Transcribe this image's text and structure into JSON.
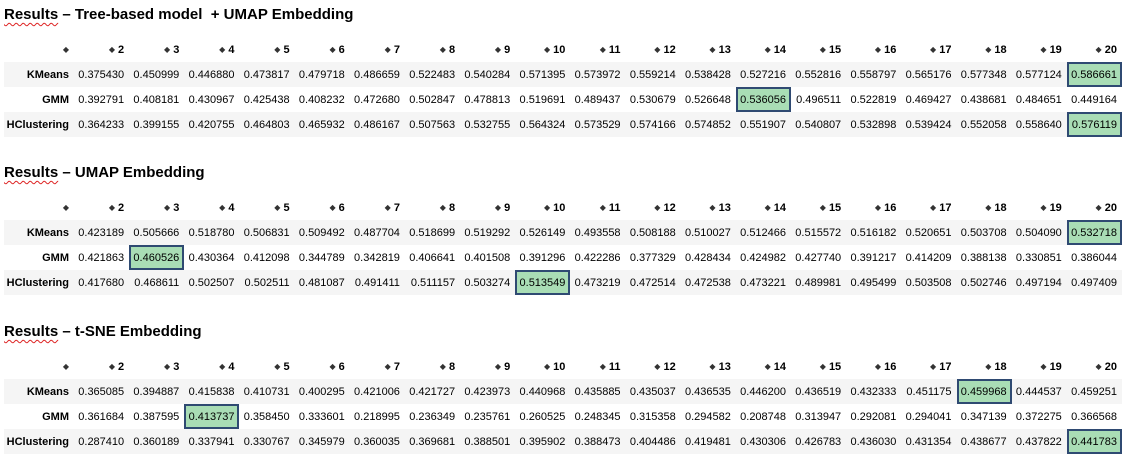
{
  "sections": [
    {
      "title_prefix": "Results",
      "title_rest": " – Tree-based model  + UMAP Embedding",
      "columns": [
        "2",
        "3",
        "4",
        "5",
        "6",
        "7",
        "8",
        "9",
        "10",
        "11",
        "12",
        "13",
        "14",
        "15",
        "16",
        "17",
        "18",
        "19",
        "20"
      ],
      "rows": [
        {
          "label": "KMeans",
          "values": [
            "0.375430",
            "0.450999",
            "0.446880",
            "0.473817",
            "0.479718",
            "0.486659",
            "0.522483",
            "0.540284",
            "0.571395",
            "0.573972",
            "0.559214",
            "0.538428",
            "0.527216",
            "0.552816",
            "0.558797",
            "0.565176",
            "0.577348",
            "0.577124",
            "0.586661"
          ],
          "highlight": 18
        },
        {
          "label": "GMM",
          "values": [
            "0.392791",
            "0.408181",
            "0.430967",
            "0.425438",
            "0.408232",
            "0.472680",
            "0.502847",
            "0.478813",
            "0.519691",
            "0.489437",
            "0.530679",
            "0.526648",
            "0.536056",
            "0.496511",
            "0.522819",
            "0.469427",
            "0.438681",
            "0.484651",
            "0.449164"
          ],
          "highlight": 12
        },
        {
          "label": "HClustering",
          "values": [
            "0.364233",
            "0.399155",
            "0.420755",
            "0.464803",
            "0.465932",
            "0.486167",
            "0.507563",
            "0.532755",
            "0.564324",
            "0.573529",
            "0.574166",
            "0.574852",
            "0.551907",
            "0.540807",
            "0.532898",
            "0.539424",
            "0.552058",
            "0.558640",
            "0.576119"
          ],
          "highlight": 18
        }
      ]
    },
    {
      "title_prefix": "Results",
      "title_rest": " – UMAP Embedding",
      "columns": [
        "2",
        "3",
        "4",
        "5",
        "6",
        "7",
        "8",
        "9",
        "10",
        "11",
        "12",
        "13",
        "14",
        "15",
        "16",
        "17",
        "18",
        "19",
        "20"
      ],
      "rows": [
        {
          "label": "KMeans",
          "values": [
            "0.423189",
            "0.505666",
            "0.518780",
            "0.506831",
            "0.509492",
            "0.487704",
            "0.518699",
            "0.519292",
            "0.526149",
            "0.493558",
            "0.508188",
            "0.510027",
            "0.512466",
            "0.515572",
            "0.516182",
            "0.520651",
            "0.503708",
            "0.504090",
            "0.532718"
          ],
          "highlight": 18
        },
        {
          "label": "GMM",
          "values": [
            "0.421863",
            "0.460526",
            "0.430364",
            "0.412098",
            "0.344789",
            "0.342819",
            "0.406641",
            "0.401508",
            "0.391296",
            "0.422286",
            "0.377329",
            "0.428434",
            "0.424982",
            "0.427740",
            "0.391217",
            "0.414209",
            "0.388138",
            "0.330851",
            "0.386044"
          ],
          "highlight": 1
        },
        {
          "label": "HClustering",
          "values": [
            "0.417680",
            "0.468611",
            "0.502507",
            "0.502511",
            "0.481087",
            "0.491411",
            "0.511157",
            "0.503274",
            "0.513549",
            "0.473219",
            "0.472514",
            "0.472538",
            "0.473221",
            "0.489981",
            "0.495499",
            "0.503508",
            "0.502746",
            "0.497194",
            "0.497409"
          ],
          "highlight": 8
        }
      ]
    },
    {
      "title_prefix": "Results",
      "title_rest": " – t-SNE Embedding",
      "columns": [
        "2",
        "3",
        "4",
        "5",
        "6",
        "7",
        "8",
        "9",
        "10",
        "11",
        "12",
        "13",
        "14",
        "15",
        "16",
        "17",
        "18",
        "19",
        "20"
      ],
      "rows": [
        {
          "label": "KMeans",
          "values": [
            "0.365085",
            "0.394887",
            "0.415838",
            "0.410731",
            "0.400295",
            "0.421006",
            "0.421727",
            "0.423973",
            "0.440968",
            "0.435885",
            "0.435037",
            "0.436535",
            "0.446200",
            "0.436519",
            "0.432333",
            "0.451175",
            "0.459968",
            "0.444537",
            "0.459251"
          ],
          "highlight": 16
        },
        {
          "label": "GMM",
          "values": [
            "0.361684",
            "0.387595",
            "0.413737",
            "0.358450",
            "0.333601",
            "0.218995",
            "0.236349",
            "0.235761",
            "0.260525",
            "0.248345",
            "0.315358",
            "0.294582",
            "0.208748",
            "0.313947",
            "0.292081",
            "0.294041",
            "0.347139",
            "0.372275",
            "0.366568"
          ],
          "highlight": 2
        },
        {
          "label": "HClustering",
          "values": [
            "0.287410",
            "0.360189",
            "0.337941",
            "0.330767",
            "0.345979",
            "0.360035",
            "0.369681",
            "0.388501",
            "0.395902",
            "0.388473",
            "0.404486",
            "0.419481",
            "0.430306",
            "0.426783",
            "0.436030",
            "0.431354",
            "0.438677",
            "0.437822",
            "0.441783"
          ],
          "highlight": 18
        }
      ]
    }
  ],
  "colors": {
    "highlight_fill": "#a9ddb5",
    "highlight_border": "#2f4a72",
    "stripe": "#f5f5f5"
  },
  "icons": {
    "sort": "sort-arrows-icon"
  }
}
